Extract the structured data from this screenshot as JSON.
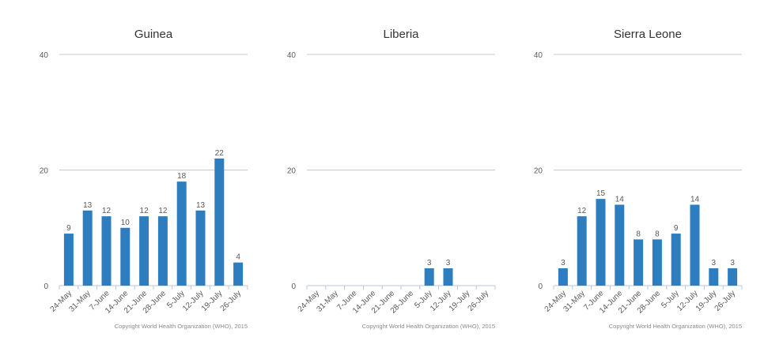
{
  "chart_data": [
    {
      "type": "bar",
      "title": "Guinea",
      "categories": [
        "24-May",
        "31-May",
        "7-June",
        "14-June",
        "21-June",
        "28-June",
        "5-July",
        "12-July",
        "19-July",
        "26-July"
      ],
      "values": [
        9,
        13,
        12,
        10,
        12,
        12,
        18,
        13,
        22,
        4
      ],
      "color": "#2e7ebf",
      "ylim": [
        0,
        40
      ],
      "yticks": [
        0,
        20,
        40
      ],
      "grid": true,
      "note": "Copyright World Health Organization (WHO), 2015"
    },
    {
      "type": "bar",
      "title": "Liberia",
      "categories": [
        "24-May",
        "31-May",
        "7-June",
        "14-June",
        "21-June",
        "28-June",
        "5-July",
        "12-July",
        "19-July",
        "26-July"
      ],
      "values": [
        null,
        null,
        null,
        null,
        null,
        null,
        3,
        3,
        null,
        null
      ],
      "color": "#2e7ebf",
      "ylim": [
        0,
        40
      ],
      "yticks": [
        0,
        20,
        40
      ],
      "grid": true,
      "note": "Copyright World Health Organization (WHO), 2015"
    },
    {
      "type": "bar",
      "title": "Sierra Leone",
      "categories": [
        "24-May",
        "31-May",
        "7-June",
        "14-June",
        "21-June",
        "28-June",
        "5-July",
        "12-July",
        "19-July",
        "26-July"
      ],
      "values": [
        3,
        12,
        15,
        14,
        8,
        8,
        9,
        14,
        3,
        3
      ],
      "color": "#2e7ebf",
      "ylim": [
        0,
        40
      ],
      "yticks": [
        0,
        20,
        40
      ],
      "grid": true,
      "note": "Copyright World Health Organization (WHO), 2015"
    }
  ]
}
